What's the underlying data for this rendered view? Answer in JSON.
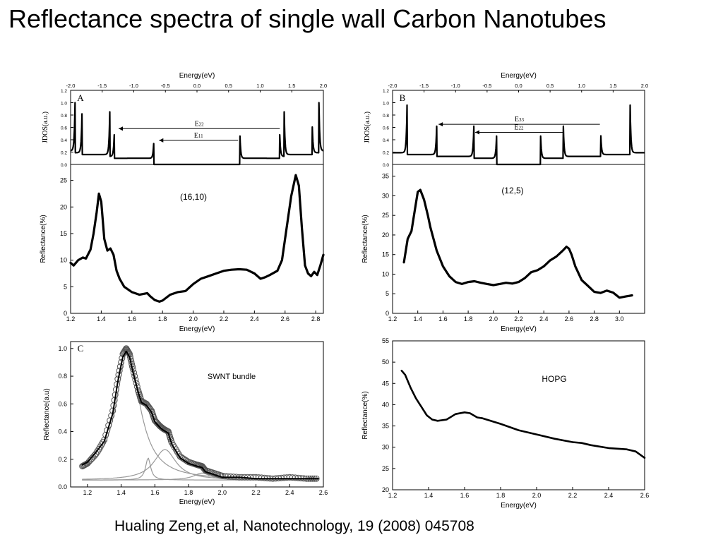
{
  "slide": {
    "title": "Reflectance spectra of single wall Carbon Nanotubes",
    "citation": "Hualing Zeng,et al, Nanotechnology, 19 (2008) 045708"
  },
  "chart_data": [
    {
      "id": "jdos_A",
      "type": "line",
      "panel_letter": "A",
      "xlabel_top": "Energy(eV)",
      "ylabel": "JDOS(a.u.)",
      "xlim": [
        -2.0,
        2.0
      ],
      "xticks": [
        "-2.0",
        "-1.5",
        "-1.0",
        "-0.5",
        "0.0",
        "0.5",
        "1.0",
        "1.5",
        "2.0"
      ],
      "ylim": [
        0.0,
        1.2
      ],
      "yticks": [
        "0.0",
        "0.2",
        "0.4",
        "0.6",
        "0.8",
        "1.0",
        "1.2"
      ],
      "singularities": [
        [
          -1.93,
          1.0
        ],
        [
          -1.82,
          0.82
        ],
        [
          -1.38,
          0.85
        ],
        [
          -1.31,
          0.48
        ],
        [
          -0.68,
          0.46
        ],
        [
          0.68,
          0.46
        ],
        [
          1.31,
          0.48
        ],
        [
          1.38,
          0.85
        ],
        [
          1.82,
          0.82
        ],
        [
          1.93,
          1.0
        ]
      ],
      "arrows": [
        {
          "label": "E22",
          "from": 1.31,
          "to": -1.24,
          "y": 0.58
        },
        {
          "label": "E11",
          "from": 0.65,
          "to": -0.6,
          "y": 0.39
        }
      ],
      "line_color": "#000000"
    },
    {
      "id": "refl_16_10",
      "type": "line",
      "annotation": "(16,10)",
      "xlabel": "Energy(eV)",
      "ylabel": "Reflectance(%)",
      "xlim": [
        1.2,
        2.85
      ],
      "xticks": [
        1.2,
        1.4,
        1.6,
        1.8,
        2.0,
        2.2,
        2.4,
        2.6,
        2.8
      ],
      "ylim": [
        0,
        28
      ],
      "yticks": [
        0,
        5,
        10,
        15,
        20,
        25
      ],
      "series": [
        {
          "x": [
            1.2,
            1.22,
            1.25,
            1.28,
            1.3,
            1.33,
            1.35,
            1.37,
            1.385,
            1.4,
            1.42,
            1.44,
            1.46,
            1.48,
            1.5,
            1.52,
            1.55,
            1.6,
            1.65,
            1.7,
            1.72,
            1.75,
            1.78,
            1.8,
            1.85,
            1.9,
            1.95,
            2.0,
            2.05,
            2.1,
            2.15,
            2.2,
            2.25,
            2.3,
            2.35,
            2.4,
            2.44,
            2.47,
            2.5,
            2.55,
            2.58,
            2.61,
            2.64,
            2.67,
            2.69,
            2.71,
            2.73,
            2.75,
            2.77,
            2.79,
            2.81,
            2.83,
            2.85
          ],
          "y": [
            9.5,
            9.0,
            10.0,
            10.5,
            10.3,
            12.0,
            15.0,
            19.0,
            22.5,
            21.0,
            14.0,
            11.8,
            12.2,
            11.0,
            8.0,
            6.5,
            5.0,
            4.0,
            3.5,
            3.8,
            3.2,
            2.5,
            2.2,
            2.4,
            3.5,
            4.0,
            4.2,
            5.5,
            6.5,
            7.0,
            7.5,
            8.0,
            8.2,
            8.3,
            8.2,
            7.5,
            6.5,
            6.8,
            7.2,
            8.0,
            10.0,
            16.0,
            22.0,
            26.0,
            24.0,
            16.0,
            9.0,
            7.5,
            7.0,
            7.8,
            7.2,
            9.0,
            11.0
          ]
        }
      ],
      "line_color": "#000000"
    },
    {
      "id": "jdos_B",
      "type": "line",
      "panel_letter": "B",
      "xlabel_top": "Energy(eV)",
      "ylabel": "JDOS(a.u.)",
      "xlim": [
        -2.0,
        2.0
      ],
      "xticks": [
        "-2.0",
        "-1.5",
        "-1.0",
        "-0.5",
        "0.0",
        "0.5",
        "1.0",
        "1.5",
        "2.0"
      ],
      "ylim": [
        0.0,
        1.2
      ],
      "yticks": [
        "0.0",
        "0.2",
        "0.4",
        "0.6",
        "0.8",
        "1.0",
        "1.2"
      ],
      "singularities": [
        [
          -1.77,
          0.96
        ],
        [
          -1.3,
          0.62
        ],
        [
          -0.71,
          0.62
        ],
        [
          -0.35,
          0.46
        ],
        [
          0.35,
          0.46
        ],
        [
          0.71,
          0.62
        ],
        [
          1.3,
          0.62
        ],
        [
          1.77,
          0.96
        ]
      ],
      "arrows": [
        {
          "label": "E33",
          "from": 1.29,
          "to": -1.27,
          "y": 0.65
        },
        {
          "label": "E22",
          "from": 0.7,
          "to": -0.69,
          "y": 0.52
        }
      ],
      "line_color": "#000000"
    },
    {
      "id": "refl_12_5",
      "type": "line",
      "annotation": "(12,5)",
      "xlabel": "Energy(eV)",
      "ylabel": "Reflectance(%)",
      "xlim": [
        1.2,
        3.2
      ],
      "xticks": [
        1.2,
        1.4,
        1.6,
        1.8,
        2.0,
        2.2,
        2.4,
        2.6,
        2.8,
        3.0
      ],
      "ylim": [
        0,
        38
      ],
      "yticks": [
        0,
        5,
        10,
        15,
        20,
        25,
        30,
        35
      ],
      "series": [
        {
          "x": [
            1.29,
            1.32,
            1.35,
            1.38,
            1.4,
            1.42,
            1.45,
            1.48,
            1.5,
            1.55,
            1.6,
            1.65,
            1.7,
            1.75,
            1.8,
            1.85,
            1.9,
            1.95,
            2.0,
            2.05,
            2.1,
            2.15,
            2.2,
            2.25,
            2.3,
            2.35,
            2.4,
            2.45,
            2.5,
            2.55,
            2.58,
            2.6,
            2.62,
            2.65,
            2.7,
            2.75,
            2.8,
            2.85,
            2.9,
            2.95,
            3.0,
            3.05,
            3.1
          ],
          "y": [
            13.0,
            19.0,
            21.0,
            27.0,
            31.0,
            31.5,
            29.0,
            25.0,
            22.0,
            16.0,
            12.0,
            9.5,
            8.0,
            7.5,
            8.0,
            8.2,
            7.8,
            7.5,
            7.2,
            7.5,
            7.8,
            7.6,
            8.0,
            9.0,
            10.5,
            11.0,
            12.0,
            13.5,
            14.5,
            16.0,
            17.0,
            16.5,
            15.0,
            12.0,
            8.5,
            7.0,
            5.5,
            5.2,
            5.8,
            5.3,
            4.0,
            4.3,
            4.6
          ]
        }
      ],
      "line_color": "#000000"
    },
    {
      "id": "swnt_bundle",
      "type": "line",
      "panel_letter": "C",
      "annotation": "SWNT bundle",
      "xlabel": "Energy(eV)",
      "ylabel": "Reflectance(a.u)",
      "xlim": [
        1.1,
        2.6
      ],
      "xticks": [
        1.2,
        1.4,
        1.6,
        1.8,
        2.0,
        2.2,
        2.4,
        2.6
      ],
      "ylim": [
        0.0,
        1.05
      ],
      "yticks": [
        0.0,
        0.2,
        0.4,
        0.6,
        0.8,
        1.0
      ],
      "series": [
        {
          "x": [
            1.17,
            1.2,
            1.25,
            1.3,
            1.35,
            1.38,
            1.41,
            1.43,
            1.45,
            1.47,
            1.5,
            1.52,
            1.55,
            1.58,
            1.6,
            1.63,
            1.65,
            1.68,
            1.7,
            1.75,
            1.8,
            1.85,
            1.88,
            1.9,
            1.95,
            2.0,
            2.1,
            2.2,
            2.3,
            2.4,
            2.5,
            2.57
          ],
          "y": [
            0.15,
            0.17,
            0.24,
            0.34,
            0.55,
            0.78,
            0.96,
            1.0,
            0.96,
            0.85,
            0.7,
            0.62,
            0.6,
            0.55,
            0.48,
            0.44,
            0.42,
            0.4,
            0.32,
            0.22,
            0.18,
            0.16,
            0.15,
            0.12,
            0.1,
            0.08,
            0.07,
            0.07,
            0.06,
            0.07,
            0.06,
            0.06
          ],
          "style": "circles",
          "color": "#555555"
        },
        {
          "x": [
            1.17,
            1.2,
            1.25,
            1.3,
            1.35,
            1.38,
            1.41,
            1.43,
            1.45,
            1.47,
            1.5,
            1.52,
            1.55,
            1.58,
            1.6,
            1.63,
            1.65,
            1.68,
            1.7,
            1.75,
            1.8,
            1.85,
            1.88,
            1.9,
            1.95,
            2.0,
            2.1,
            2.2,
            2.3,
            2.4,
            2.5,
            2.57
          ],
          "y": [
            0.16,
            0.18,
            0.25,
            0.33,
            0.53,
            0.76,
            0.94,
            0.98,
            0.94,
            0.83,
            0.69,
            0.61,
            0.59,
            0.54,
            0.47,
            0.43,
            0.41,
            0.39,
            0.31,
            0.21,
            0.17,
            0.15,
            0.14,
            0.11,
            0.09,
            0.07,
            0.07,
            0.06,
            0.06,
            0.06,
            0.06,
            0.06
          ],
          "style": "line",
          "color": "#000000"
        },
        {
          "center": 1.44,
          "amp": 0.93,
          "width": 0.085,
          "style": "component",
          "color": "#999999"
        },
        {
          "center": 1.56,
          "amp": 0.16,
          "width": 0.018,
          "style": "component",
          "color": "#999999"
        },
        {
          "center": 1.66,
          "amp": 0.22,
          "width": 0.08,
          "style": "component",
          "color": "#999999"
        },
        {
          "center": 1.88,
          "amp": 0.05,
          "width": 0.06,
          "style": "component",
          "color": "#999999"
        }
      ],
      "baseline": 0.05
    },
    {
      "id": "hopg",
      "type": "line",
      "annotation": "HOPG",
      "xlabel": "Energy(eV)",
      "ylabel": "Reflectance(%)",
      "xlim": [
        1.2,
        2.6
      ],
      "xticks": [
        1.2,
        1.4,
        1.6,
        1.8,
        2.0,
        2.2,
        2.4,
        2.6
      ],
      "ylim": [
        20,
        55
      ],
      "yticks": [
        20,
        25,
        30,
        35,
        40,
        45,
        50,
        55
      ],
      "series": [
        {
          "x": [
            1.25,
            1.27,
            1.3,
            1.33,
            1.36,
            1.39,
            1.42,
            1.45,
            1.5,
            1.55,
            1.6,
            1.63,
            1.67,
            1.7,
            1.8,
            1.9,
            2.0,
            2.1,
            2.2,
            2.25,
            2.3,
            2.4,
            2.5,
            2.55,
            2.6
          ],
          "y": [
            48.0,
            47.0,
            44.0,
            41.5,
            39.5,
            37.5,
            36.5,
            36.2,
            36.5,
            37.8,
            38.2,
            38.0,
            37.0,
            36.8,
            35.5,
            34.0,
            33.0,
            32.0,
            31.2,
            31.0,
            30.5,
            29.8,
            29.5,
            29.0,
            27.5
          ]
        }
      ],
      "line_color": "#000000"
    }
  ]
}
